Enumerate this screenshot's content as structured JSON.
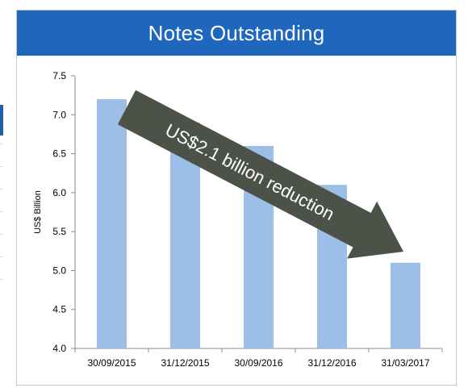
{
  "chart_data": {
    "type": "bar",
    "title": "Notes Outstanding",
    "ylabel": "US$ Billion",
    "xlabel": "",
    "categories": [
      "30/09/2015",
      "31/12/2015",
      "30/09/2016",
      "31/12/2016",
      "31/03/2017"
    ],
    "values": [
      7.2,
      6.9,
      6.6,
      6.1,
      5.1
    ],
    "ylim": [
      4.0,
      7.5
    ],
    "yticks": [
      "4.0",
      "4.5",
      "5.0",
      "5.5",
      "6.0",
      "6.5",
      "7.0",
      "7.5"
    ],
    "grid": false,
    "annotation": "US$2.1 billion reduction",
    "colors": {
      "bar": "#9dbfe7",
      "arrow": "#4d5249",
      "title_bg": "#1f67bd",
      "axis": "#8c8c8c"
    }
  }
}
